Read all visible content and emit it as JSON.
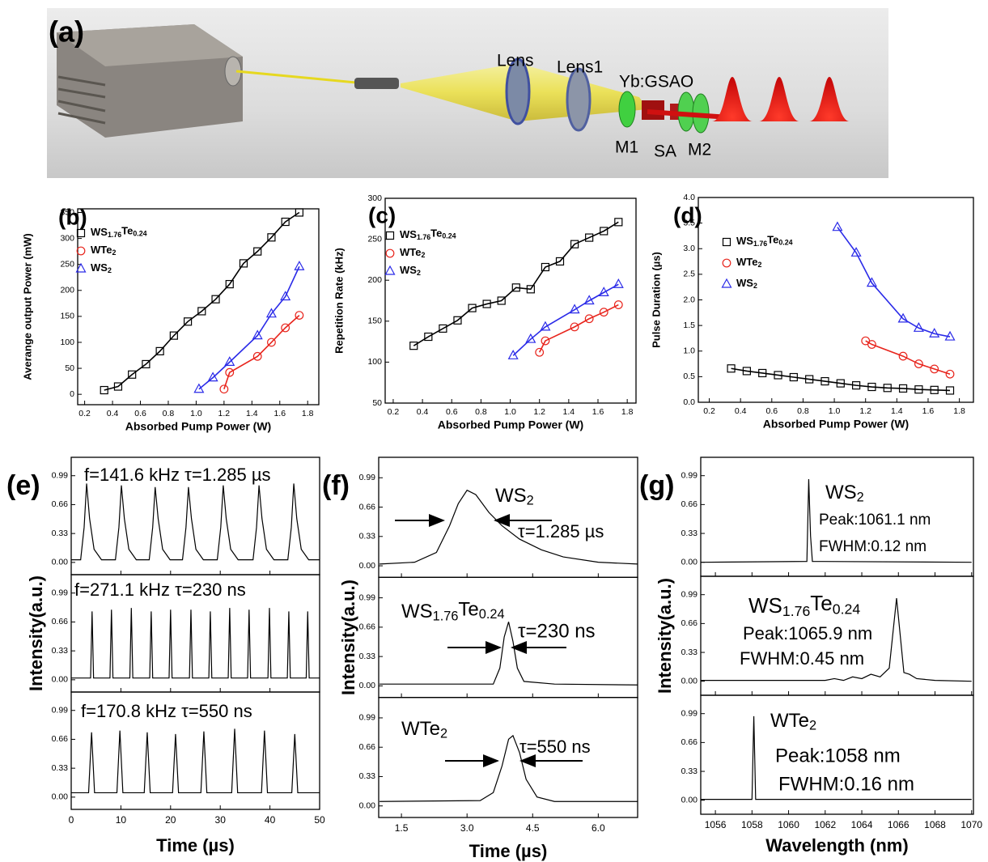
{
  "diagram": {
    "label": "(a)",
    "labels": [
      "Lens",
      "Lens1",
      "Yb:GSAO",
      "M1",
      "SA",
      "M2"
    ]
  },
  "chart_data": [
    {
      "type": "scatter",
      "label": "(b)",
      "x_label": "Absorbed Pump Power (W)",
      "y_label": "Averange output Power (mW)",
      "xlim": [
        0.15,
        1.88
      ],
      "xticks": [
        0.2,
        0.4,
        0.6,
        0.8,
        {
          "value": 1,
          "label": "1.0"
        },
        1.2,
        1.4,
        1.6,
        1.8
      ],
      "ylim": [
        -20,
        357
      ],
      "yticks": [
        0,
        50,
        100,
        150,
        200,
        250,
        300,
        350
      ],
      "legend": "upper left",
      "fit_line": true,
      "series": [
        {
          "name": "WS1.76Te0.24",
          "color": "#000000",
          "marker": "square",
          "x": [
            0.34,
            0.44,
            0.54,
            0.64,
            0.74,
            0.84,
            0.94,
            1.04,
            1.14,
            1.24,
            1.34,
            1.44,
            1.54,
            1.64,
            1.74
          ],
          "values": [
            8,
            15,
            38,
            58,
            83,
            113,
            140,
            160,
            183,
            212,
            252,
            275,
            302,
            332,
            350
          ]
        },
        {
          "name": "WTe2",
          "color": "#e8241c",
          "marker": "circle",
          "x": [
            1.2,
            1.24,
            1.44,
            1.54,
            1.64,
            1.74
          ],
          "values": [
            10,
            42,
            73,
            100,
            128,
            152
          ]
        },
        {
          "name": "WS2",
          "color": "#2a2ae8",
          "marker": "triangle",
          "x": [
            1.02,
            1.12,
            1.24,
            1.44,
            1.54,
            1.64,
            1.74
          ],
          "values": [
            10,
            32,
            62,
            113,
            155,
            188,
            246
          ]
        }
      ]
    },
    {
      "type": "scatter",
      "label": "(c)",
      "x_label": "Absorbed Pump Power (W)",
      "y_label": "Repetition Rate (kHz)",
      "xlim": [
        0.145,
        1.86
      ],
      "xticks": [
        0.2,
        0.4,
        0.6,
        0.8,
        {
          "value": 1,
          "label": "1.0"
        },
        1.2,
        1.4,
        1.6,
        1.8
      ],
      "ylim": [
        50,
        300
      ],
      "yticks": [
        50,
        100,
        150,
        200,
        250,
        300
      ],
      "legend": "upper left",
      "fit_line": true,
      "series": [
        {
          "name": "WS1.76Te0.24",
          "color": "#000000",
          "marker": "square",
          "x": [
            0.34,
            0.44,
            0.54,
            0.64,
            0.74,
            0.84,
            0.94,
            1.04,
            1.14,
            1.24,
            1.34,
            1.44,
            1.54,
            1.64,
            1.74
          ],
          "values": [
            120,
            131,
            141,
            151,
            166,
            171,
            175,
            191,
            189,
            216,
            223,
            244,
            252,
            260,
            271
          ]
        },
        {
          "name": "WTe2",
          "color": "#e8241c",
          "marker": "circle",
          "x": [
            1.2,
            1.24,
            1.44,
            1.54,
            1.64,
            1.74
          ],
          "values": [
            112,
            126,
            143,
            153,
            161,
            170
          ]
        },
        {
          "name": "WS2",
          "color": "#2a2ae8",
          "marker": "triangle",
          "x": [
            1.02,
            1.14,
            1.24,
            1.44,
            1.54,
            1.64,
            1.74
          ],
          "values": [
            108,
            128,
            143,
            164,
            175,
            185,
            195
          ]
        }
      ]
    },
    {
      "type": "scatter",
      "label": "(d)",
      "x_label": "Absorbed Pump Power (W)",
      "y_label": "Pulse Duration (µs)",
      "xlim": [
        0.13,
        1.89
      ],
      "xticks": [
        0.2,
        0.4,
        0.6,
        0.8,
        {
          "value": 1,
          "label": "1.0"
        },
        1.2,
        1.4,
        1.6,
        1.8
      ],
      "ylim": [
        0,
        4
      ],
      "yticks": [
        {
          "value": 0,
          "label": "0.0"
        },
        0.5,
        {
          "value": 1,
          "label": "1.0"
        },
        1.5,
        {
          "value": 2,
          "label": "2.0"
        },
        2.5,
        {
          "value": 3,
          "label": "3.0"
        },
        3.5,
        {
          "value": 4,
          "label": "4.0"
        }
      ],
      "legend": "upper left",
      "fit_line": true,
      "series": [
        {
          "name": "WS1.76Te0.24",
          "color": "#000000",
          "marker": "square",
          "x": [
            0.34,
            0.44,
            0.54,
            0.64,
            0.74,
            0.84,
            0.94,
            1.04,
            1.14,
            1.24,
            1.34,
            1.44,
            1.54,
            1.64,
            1.74
          ],
          "values": [
            0.66,
            0.61,
            0.57,
            0.53,
            0.49,
            0.45,
            0.41,
            0.37,
            0.33,
            0.3,
            0.28,
            0.27,
            0.25,
            0.24,
            0.23
          ]
        },
        {
          "name": "WTe2",
          "color": "#e8241c",
          "marker": "circle",
          "x": [
            1.2,
            1.24,
            1.44,
            1.54,
            1.64,
            1.74
          ],
          "values": [
            1.2,
            1.13,
            0.9,
            0.75,
            0.65,
            0.55
          ]
        },
        {
          "name": "WS2",
          "color": "#2a2ae8",
          "marker": "triangle",
          "x": [
            1.02,
            1.14,
            1.24,
            1.44,
            1.54,
            1.64,
            1.74
          ],
          "values": [
            3.42,
            2.92,
            2.33,
            1.63,
            1.45,
            1.34,
            1.28
          ]
        }
      ]
    },
    {
      "type": "line",
      "label": "(e)",
      "x_label": "Time (µs)",
      "y_label": "Intensity(a.u.)",
      "color": "#000000",
      "xlim": [
        0,
        50
      ],
      "xticks": [
        0,
        10,
        20,
        30,
        40,
        50
      ],
      "ylim": [
        -0.14,
        1.2
      ],
      "yticks": [
        {
          "value": 0,
          "label": "0.00"
        },
        0.33,
        0.66,
        0.99
      ],
      "panels": [
        {
          "annotations": [
            "f=141.6 kHz τ=1.285 µs"
          ],
          "x": [
            0,
            1.9,
            2.6,
            3.1,
            3.7,
            4.6,
            6.1,
            8.9,
            9.6,
            10.1,
            10.7,
            11.6,
            13.1,
            15.7,
            16.4,
            16.9,
            17.5,
            18.4,
            19.9,
            22.4,
            23.1,
            23.6,
            24.2,
            25.1,
            26.6,
            29.4,
            30.1,
            30.6,
            31.2,
            32.1,
            33.6,
            36.6,
            37.3,
            37.8,
            38.4,
            39.3,
            40.8,
            43.6,
            44.3,
            44.8,
            45.4,
            46.3,
            47.8,
            50
          ],
          "values": [
            0.03,
            0.03,
            0.4,
            0.9,
            0.5,
            0.15,
            0.03,
            0.03,
            0.4,
            0.88,
            0.5,
            0.15,
            0.03,
            0.03,
            0.4,
            0.86,
            0.5,
            0.15,
            0.03,
            0.03,
            0.4,
            0.86,
            0.5,
            0.15,
            0.03,
            0.03,
            0.4,
            0.88,
            0.5,
            0.15,
            0.03,
            0.03,
            0.4,
            0.88,
            0.5,
            0.15,
            0.03,
            0.03,
            0.4,
            0.9,
            0.5,
            0.15,
            0.03,
            0.03
          ]
        },
        {
          "annotations": [
            "f=271.1 kHz τ=230 ns"
          ],
          "x": [
            0,
            3.9,
            4.2,
            4.5,
            7.8,
            8.1,
            8.4,
            11.8,
            12.1,
            12.4,
            15.8,
            16.1,
            16.4,
            19.7,
            20,
            20.3,
            23.8,
            24.1,
            24.4,
            27.7,
            28,
            28.3,
            31.6,
            31.9,
            32.2,
            35.5,
            35.8,
            36.1,
            39.6,
            39.9,
            40.2,
            43.5,
            43.8,
            44.1,
            47.3,
            47.6,
            47.9,
            50
          ],
          "values": [
            0.02,
            0.02,
            0.78,
            0.02,
            0.02,
            0.8,
            0.02,
            0.02,
            0.82,
            0.02,
            0.02,
            0.78,
            0.02,
            0.02,
            0.8,
            0.02,
            0.02,
            0.8,
            0.02,
            0.02,
            0.78,
            0.02,
            0.02,
            0.82,
            0.02,
            0.02,
            0.8,
            0.02,
            0.02,
            0.82,
            0.02,
            0.02,
            0.78,
            0.02,
            0.02,
            0.78,
            0.02,
            0.02
          ]
        },
        {
          "annotations": [
            "f=170.8 kHz τ=550 ns"
          ],
          "x": [
            0,
            3.5,
            4.1,
            4.7,
            9.2,
            9.8,
            10.4,
            14.7,
            15.3,
            15.9,
            20.4,
            21,
            21.6,
            26.1,
            26.7,
            27.3,
            32.3,
            32.9,
            33.5,
            38.3,
            38.9,
            39.5,
            44.4,
            45,
            45.6,
            50
          ],
          "values": [
            0.05,
            0.05,
            0.74,
            0.05,
            0.05,
            0.76,
            0.05,
            0.05,
            0.74,
            0.05,
            0.05,
            0.72,
            0.05,
            0.05,
            0.75,
            0.05,
            0.05,
            0.78,
            0.05,
            0.05,
            0.76,
            0.05,
            0.05,
            0.72,
            0.05,
            0.05
          ]
        }
      ]
    },
    {
      "type": "line",
      "label": "(f)",
      "x_label": "Time (µs)",
      "y_label": "Intensity(a.u.)",
      "color": "#000000",
      "xlim": [
        0.98,
        6.9
      ],
      "xticks": [
        1.5,
        {
          "value": 3,
          "label": "3.0"
        },
        4.5,
        {
          "value": 6,
          "label": "6.0"
        }
      ],
      "ylim": [
        -0.13,
        1.22
      ],
      "yticks": [
        {
          "value": 0,
          "label": "0.00"
        },
        0.33,
        0.66,
        0.99
      ],
      "panels": [
        {
          "annotations": [
            "WS2",
            "τ=1.285 µs"
          ],
          "x": [
            1,
            1.8,
            2.3,
            2.6,
            2.8,
            3,
            3.2,
            3.5,
            3.8,
            4.2,
            4.7,
            5.2,
            6,
            6.9
          ],
          "values": [
            0.02,
            0.04,
            0.15,
            0.45,
            0.7,
            0.85,
            0.8,
            0.6,
            0.45,
            0.3,
            0.18,
            0.1,
            0.04,
            0.02
          ]
        },
        {
          "annotations": [
            "WS1.76Te0.24",
            "τ=230 ns"
          ],
          "x": [
            1,
            3.6,
            3.75,
            3.85,
            3.95,
            4.05,
            4.15,
            4.3,
            5,
            6.9
          ],
          "values": [
            0.02,
            0.02,
            0.2,
            0.55,
            0.72,
            0.5,
            0.2,
            0.05,
            0.02,
            0.01
          ]
        },
        {
          "annotations": [
            "WTe2",
            "τ=550 ns"
          ],
          "x": [
            1,
            3.3,
            3.6,
            3.8,
            3.95,
            4.05,
            4.2,
            4.35,
            4.6,
            5,
            6.9
          ],
          "values": [
            0.05,
            0.06,
            0.15,
            0.45,
            0.75,
            0.79,
            0.6,
            0.3,
            0.1,
            0.05,
            0.05
          ]
        }
      ]
    },
    {
      "type": "line",
      "label": "(g)",
      "x_label": "Wavelength (nm)",
      "y_label": "Intensity(a.u.)",
      "color": "#000000",
      "xlim": [
        1055.2,
        1070.1
      ],
      "xticks": [
        1056,
        1058,
        1060,
        1062,
        1064,
        1066,
        1068,
        1070
      ],
      "ylim": [
        -0.16,
        1.2
      ],
      "yticks": [
        {
          "value": 0,
          "label": "0.00"
        },
        0.33,
        0.66,
        0.99
      ],
      "panels": [
        {
          "annotations": [
            "WS2",
            "Peak:1061.1 nm",
            "FWHM:0.12 nm"
          ],
          "x": [
            1055.2,
            1061,
            1061.1,
            1061.2,
            1061.3,
            1070
          ],
          "values": [
            0,
            0.01,
            0.95,
            0.3,
            0.01,
            0
          ]
        },
        {
          "annotations": [
            "WS1.76Te0.24",
            "Peak:1065.9 nm",
            "FWHM:0.45 nm"
          ],
          "x": [
            1055.2,
            1062,
            1062.5,
            1063,
            1063.5,
            1064,
            1064.5,
            1065,
            1065.5,
            1065.9,
            1066.3,
            1066.6,
            1067,
            1068,
            1070
          ],
          "values": [
            0.01,
            0.01,
            0.03,
            0.01,
            0.05,
            0.03,
            0.08,
            0.05,
            0.15,
            0.95,
            0.1,
            0.08,
            0.03,
            0.01,
            0
          ]
        },
        {
          "annotations": [
            "WTe2",
            "Peak:1058 nm",
            "FWHM:0.16 nm"
          ],
          "x": [
            1055.2,
            1058,
            1058.1,
            1058.2,
            1070
          ],
          "values": [
            0.01,
            0.01,
            0.96,
            0.01,
            0.01
          ]
        }
      ]
    }
  ]
}
